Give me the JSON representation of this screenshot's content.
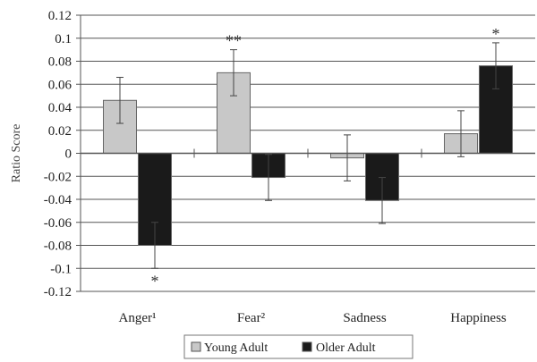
{
  "chart_data": {
    "type": "bar",
    "title": "",
    "xlabel": "",
    "ylabel": "Ratio Score",
    "ylim": [
      -0.12,
      0.12
    ],
    "ytick_step": 0.02,
    "yticks": [
      "-0.12",
      "-0.1",
      "-0.08",
      "-0.06",
      "-0.04",
      "-0.02",
      "0",
      "0.02",
      "0.04",
      "0.06",
      "0.08",
      "0.1",
      "0.12"
    ],
    "grid": true,
    "legend_position": "bottom",
    "categories": [
      "Anger¹",
      "Fear²",
      "Sadness",
      "Happiness"
    ],
    "series": [
      {
        "name": "Young Adult",
        "color": "#c8c8c8",
        "values": [
          0.046,
          0.07,
          -0.004,
          0.017
        ],
        "errors": [
          0.02,
          0.02,
          0.02,
          0.02
        ]
      },
      {
        "name": "Older Adult",
        "color": "#1a1a1a",
        "values": [
          -0.08,
          -0.021,
          -0.041,
          0.076
        ],
        "errors": [
          0.02,
          0.02,
          0.02,
          0.02
        ]
      }
    ],
    "annotations": [
      {
        "category": 0,
        "series": 1,
        "text": "*"
      },
      {
        "category": 1,
        "series": 0,
        "text": "**"
      },
      {
        "category": 3,
        "series": 1,
        "text": "*"
      }
    ]
  }
}
